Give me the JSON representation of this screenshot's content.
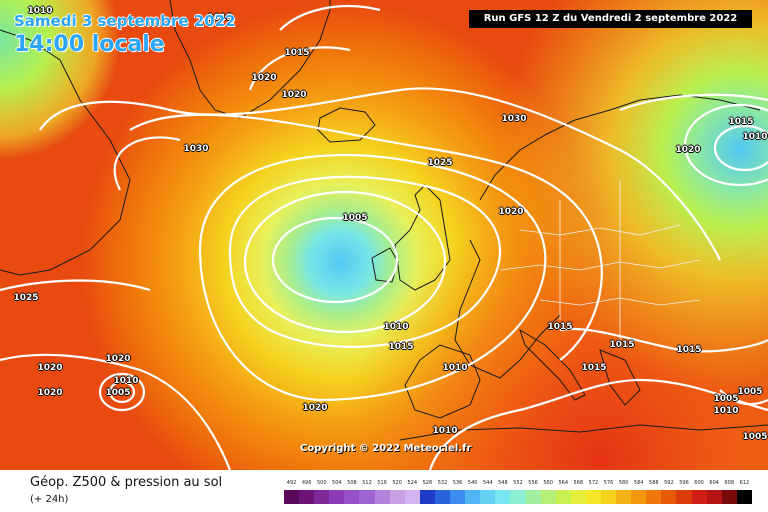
{
  "header": {
    "date": "Samedi 3 septembre 2022",
    "time": "14:00 locale",
    "run": "Run GFS 12 Z du Vendredi 2 septembre 2022",
    "copyright": "Copyright © 2022 Meteociel.fr"
  },
  "footer": {
    "title": "Géop. Z500 & pression au sol",
    "subtitle": "(+ 24h)",
    "scale_values": [
      "492",
      "496",
      "500",
      "504",
      "508",
      "512",
      "516",
      "520",
      "524",
      "528",
      "532",
      "536",
      "540",
      "544",
      "548",
      "552",
      "556",
      "560",
      "564",
      "568",
      "572",
      "576",
      "580",
      "584",
      "588",
      "592",
      "596",
      "600",
      "604",
      "608",
      "612"
    ],
    "scale_colors": [
      "#5a0a5a",
      "#6e1478",
      "#7d2896",
      "#8c3cb4",
      "#9650c8",
      "#a064d2",
      "#b482dc",
      "#c8a0e6",
      "#d2b4f0",
      "#1e3cc8",
      "#2864dc",
      "#3c8cf0",
      "#50b4f5",
      "#64d2f5",
      "#78e6f0",
      "#8cf0d2",
      "#a0f0a0",
      "#b4f078",
      "#c8f050",
      "#e6f03c",
      "#f5e628",
      "#f5d21e",
      "#f5b414",
      "#f5960f",
      "#f0780a",
      "#e65a0a",
      "#dc3c0a",
      "#d21e14",
      "#b41414",
      "#780a0a",
      "#000000"
    ]
  },
  "isobars": [
    "1010",
    "1015",
    "1015",
    "1020",
    "1020",
    "1030",
    "1030",
    "1025",
    "1015",
    "1010",
    "1020",
    "1005",
    "1020",
    "1025",
    "1010",
    "1015",
    "1015",
    "1015",
    "1015",
    "1010",
    "1020",
    "1020",
    "1015",
    "1005",
    "1020",
    "1010",
    "1005",
    "1020",
    "1005",
    "1010",
    "1005",
    "1010"
  ],
  "colors": {
    "header_text": "#2ba6f5",
    "run_box_bg": "#000000",
    "isobar_line": "#ffffff"
  }
}
